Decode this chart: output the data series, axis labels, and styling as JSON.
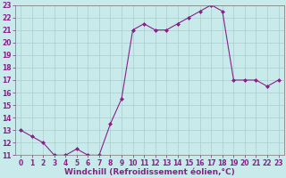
{
  "x": [
    0,
    1,
    2,
    3,
    4,
    5,
    6,
    7,
    8,
    9,
    10,
    11,
    12,
    13,
    14,
    15,
    16,
    17,
    18,
    19,
    20,
    21,
    22,
    23
  ],
  "y": [
    13,
    12.5,
    12,
    11,
    11,
    11.5,
    11,
    11,
    13.5,
    15.5,
    21,
    21.5,
    21,
    21,
    21.5,
    22,
    22.5,
    23,
    22.5,
    17,
    17,
    17,
    16.5,
    17
  ],
  "line_color": "#882288",
  "marker": "D",
  "marker_size": 2.0,
  "bg_color": "#c8eaea",
  "grid_color": "#aacccc",
  "xlabel": "Windchill (Refroidissement éolien,°C)",
  "ylim": [
    11,
    23
  ],
  "xlim": [
    -0.5,
    23.5
  ],
  "yticks": [
    11,
    12,
    13,
    14,
    15,
    16,
    17,
    18,
    19,
    20,
    21,
    22,
    23
  ],
  "xticks": [
    0,
    1,
    2,
    3,
    4,
    5,
    6,
    7,
    8,
    9,
    10,
    11,
    12,
    13,
    14,
    15,
    16,
    17,
    18,
    19,
    20,
    21,
    22,
    23
  ],
  "label_fontsize": 6.5,
  "tick_fontsize": 5.5
}
